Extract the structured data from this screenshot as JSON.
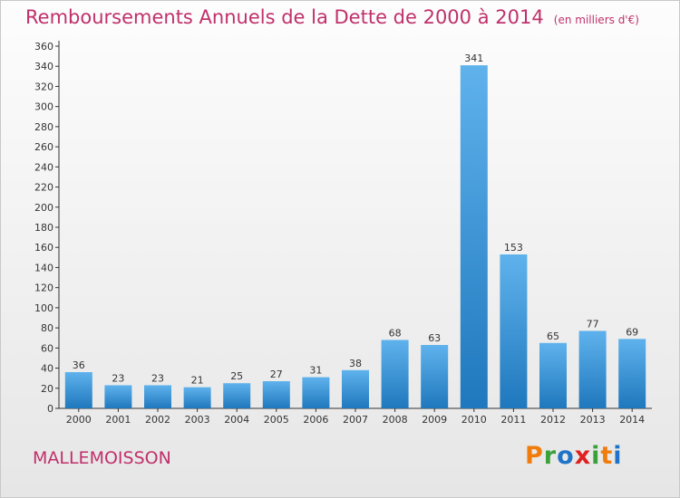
{
  "header": {
    "title": "Remboursements Annuels de la Dette de 2000 à 2014",
    "subtitle": "(en milliers d'€)"
  },
  "footer": {
    "commune": "MALLEMOISSON",
    "logo_text": "Proxiti",
    "logo_letters": [
      "P",
      "r",
      "o",
      "x",
      "i",
      "t",
      "i"
    ],
    "logo_colors": [
      "#f07c0c",
      "#3aa13a",
      "#1f73c8",
      "#e02020",
      "#3aa13a",
      "#f07c0c",
      "#1f73c8"
    ]
  },
  "colors": {
    "bar_light": "#5fb2ec",
    "bar_dark": "#1f78bd",
    "accent": "#c0306b"
  },
  "chart_data": {
    "type": "bar",
    "title": "Remboursements Annuels de la Dette de 2000 à 2014",
    "subtitle": "(en milliers d'€)",
    "categories": [
      "2000",
      "2001",
      "2002",
      "2003",
      "2004",
      "2005",
      "2006",
      "2007",
      "2008",
      "2009",
      "2010",
      "2011",
      "2012",
      "2013",
      "2014"
    ],
    "values": [
      36,
      23,
      23,
      21,
      25,
      27,
      31,
      38,
      68,
      63,
      341,
      153,
      65,
      77,
      69
    ],
    "data_labels": [
      "36",
      "23",
      "23",
      "21",
      "25",
      "27",
      "31",
      "38",
      "68",
      "63",
      "341",
      "153",
      "65",
      "77",
      "69"
    ],
    "yticks": [
      0,
      20,
      40,
      60,
      80,
      100,
      120,
      140,
      160,
      180,
      200,
      220,
      240,
      260,
      280,
      300,
      320,
      340,
      360
    ],
    "ytick_labels": [
      "0",
      "20",
      "40",
      "60",
      "80",
      "100",
      "120",
      "140",
      "160",
      "180",
      "200",
      "220",
      "240",
      "260",
      "280",
      "300",
      "320",
      "340",
      "360"
    ],
    "ylim": [
      0,
      360
    ],
    "xlabel": "",
    "ylabel": "",
    "grid": false,
    "legend": "none"
  }
}
